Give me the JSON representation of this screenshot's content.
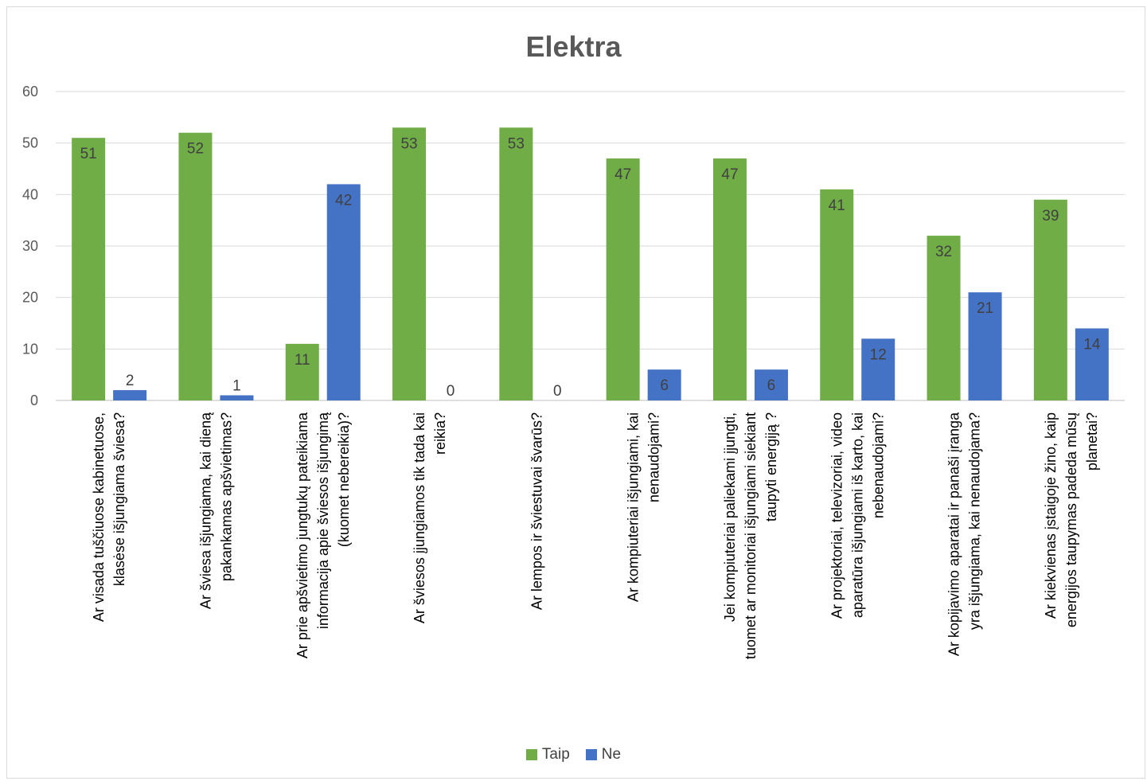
{
  "chart_data": {
    "type": "bar",
    "title": "Elektra",
    "categories": [
      [
        "Ar visada tuščiuose kabinetuose,",
        "klasėse išjungiama šviesa?"
      ],
      [
        "Ar šviesa išjungiama, kai dieną",
        "pakankamas apšvietimas?"
      ],
      [
        "Ar prie apšvietimo jungtukų pateikiama",
        "informacija apie šviesos išjungimą",
        "(kuomet nebereikia)?"
      ],
      [
        "Ar šviesos įjungiamos tik tada kai",
        "reikia?"
      ],
      [
        "Ar lempos ir šviestuvai švarūs?"
      ],
      [
        "Ar kompiuteriai išjungiami, kai",
        "nenaudojami?"
      ],
      [
        "Jei kompiuteriai paliekami įjungti,",
        "tuomet ar monitoriai išjungiami siekiant",
        "taupyti energiją ?"
      ],
      [
        "Ar projektoriai, televizoriai, video",
        "aparatūra išjungiami iš karto, kai",
        "nebenaudojami?"
      ],
      [
        "Ar kopijavimo aparatai ir panaši įranga",
        "yra išjungiama, kai nenaudojama?"
      ],
      [
        "Ar kiekvienas įstaigoje žino, kaip",
        "energijos taupymas padeda mūsų",
        "planetai?"
      ]
    ],
    "series": [
      {
        "name": "Taip",
        "color": "#70ad47",
        "values": [
          51,
          52,
          11,
          53,
          53,
          47,
          47,
          41,
          32,
          39
        ]
      },
      {
        "name": "Ne",
        "color": "#4472c4",
        "values": [
          2,
          1,
          42,
          0,
          0,
          6,
          6,
          12,
          21,
          14
        ]
      }
    ],
    "ylim": [
      0,
      60
    ],
    "yticks": [
      0,
      10,
      20,
      30,
      40,
      50,
      60
    ],
    "grid": true,
    "legend_position": "bottom"
  }
}
